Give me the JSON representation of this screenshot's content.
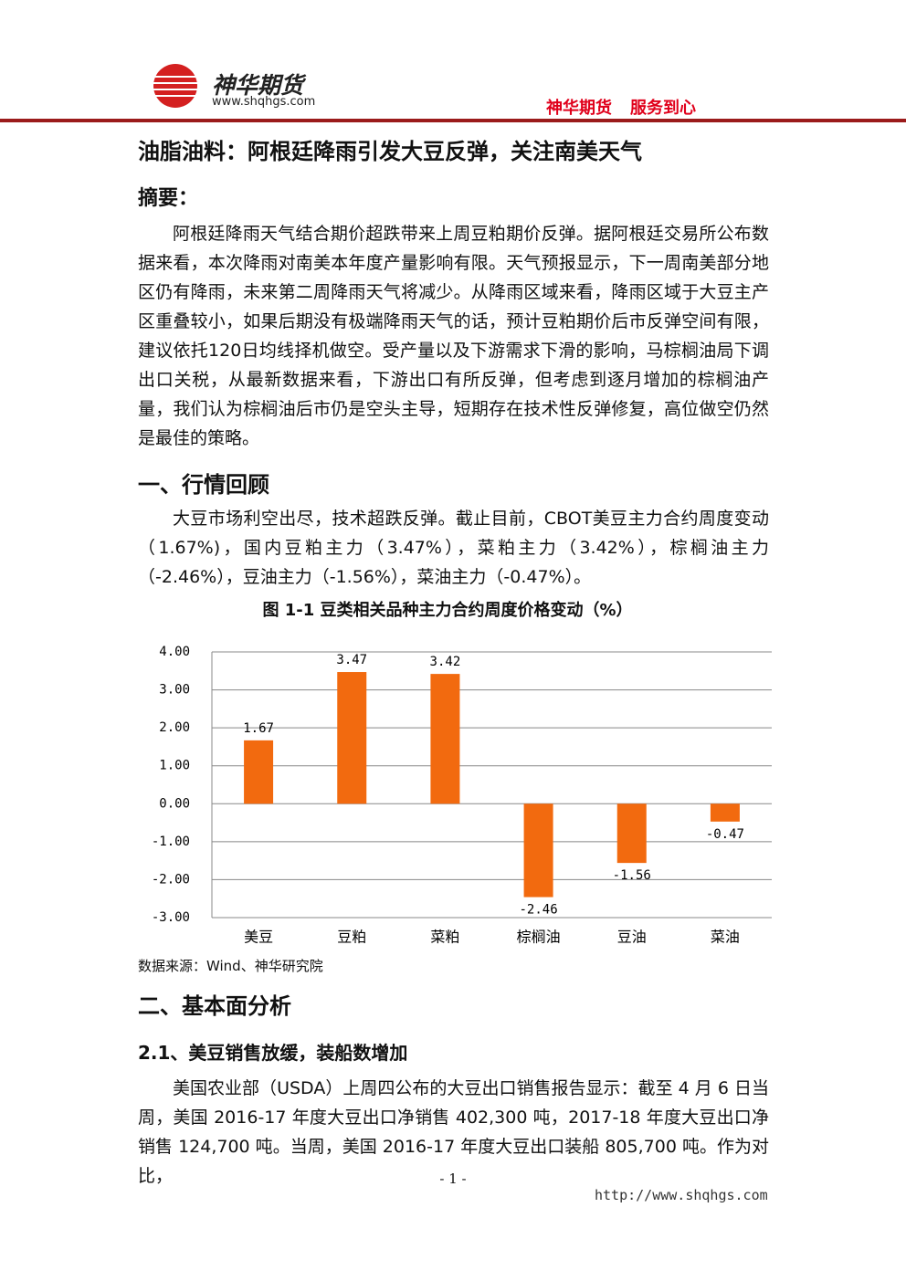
{
  "header": {
    "brand": "神华期货",
    "url": "www.shqhgs.com",
    "slogan": [
      "神华期货",
      "服务到心"
    ]
  },
  "title": "油脂油料：阿根廷降雨引发大豆反弹，关注南美天气",
  "abstract": {
    "heading": "摘要：",
    "text": "阿根廷降雨天气结合期价超跌带来上周豆粕期价反弹。据阿根廷交易所公布数据来看，本次降雨对南美本年度产量影响有限。天气预报显示，下一周南美部分地区仍有降雨，未来第二周降雨天气将减少。从降雨区域来看，降雨区域于大豆主产区重叠较小，如果后期没有极端降雨天气的话，预计豆粕期价后市反弹空间有限，建议依托120日均线择机做空。受产量以及下游需求下滑的影响，马棕榈油局下调出口关税，从最新数据来看，下游出口有所反弹，但考虑到逐月增加的棕榈油产量，我们认为棕榈油后市仍是空头主导，短期存在技术性反弹修复，高位做空仍然是最佳的策略。"
  },
  "sections": [
    {
      "heading": "一、行情回顾",
      "paragraphs": [
        "大豆市场利空出尽，技术超跌反弹。截止目前，CBOT美豆主力合约周度变动（1.67%)，国内豆粕主力（3.47%），菜粕主力（3.42%），棕榈油主力（-2.46%），豆油主力（-1.56%），菜油主力（-0.47%）。"
      ]
    },
    {
      "heading": "二、基本面分析",
      "subsections": [
        {
          "heading": "2.1、美豆销售放缓，装船数增加",
          "paragraphs": [
            "美国农业部（USDA）上周四公布的大豆出口销售报告显示：截至 4 月 6 日当周，美国 2016-17 年度大豆出口净销售 402,300 吨，2017-18 年度大豆出口净销售 124,700 吨。当周，美国 2016-17 年度大豆出口装船 805,700 吨。作为对比，"
          ]
        }
      ]
    }
  ],
  "chart_data": {
    "type": "bar",
    "title": "图 1-1 豆类相关品种主力合约周度价格变动（%）",
    "categories": [
      "美豆",
      "豆粕",
      "菜粕",
      "棕榈油",
      "豆油",
      "菜油"
    ],
    "values": [
      1.67,
      3.47,
      3.42,
      -2.46,
      -1.56,
      -0.47
    ],
    "color": "#f26a0f",
    "ylim": [
      -3,
      4
    ],
    "yticks": [
      {
        "value": 4,
        "label": "4.00"
      },
      {
        "value": 3,
        "label": "3.00"
      },
      {
        "value": 2,
        "label": "2.00"
      },
      {
        "value": 1,
        "label": "1.00"
      },
      {
        "value": 0,
        "label": "0.00"
      },
      {
        "value": -1,
        "label": "-1.00"
      },
      {
        "value": -2,
        "label": "-2.00"
      },
      {
        "value": -3,
        "label": "-3.00"
      }
    ],
    "grid": true,
    "source": "数据来源：Wind、神华研究院"
  },
  "footer": {
    "page": "- 1 -",
    "url": "http://www.shqhgs.com"
  }
}
